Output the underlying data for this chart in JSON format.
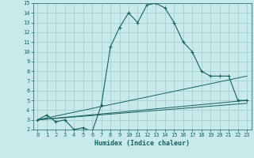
{
  "xlabel": "Humidex (Indice chaleur)",
  "background_color": "#c8eaea",
  "grid_color": "#a0c8c8",
  "line_color": "#1a6060",
  "xlim": [
    -0.5,
    23.5
  ],
  "ylim": [
    2,
    15
  ],
  "xticks": [
    0,
    1,
    2,
    3,
    4,
    5,
    6,
    7,
    8,
    9,
    10,
    11,
    12,
    13,
    14,
    15,
    16,
    17,
    18,
    19,
    20,
    21,
    22,
    23
  ],
  "yticks": [
    2,
    3,
    4,
    5,
    6,
    7,
    8,
    9,
    10,
    11,
    12,
    13,
    14,
    15
  ],
  "curve1_x": [
    0,
    1,
    2,
    3,
    4,
    5,
    6,
    7,
    8,
    9,
    10,
    11,
    12,
    13,
    14,
    15,
    16,
    17,
    18,
    19,
    20,
    21,
    22,
    23
  ],
  "curve1_y": [
    3,
    3.5,
    2.8,
    3,
    2,
    2.2,
    1.8,
    4.5,
    10.5,
    12.5,
    14,
    13,
    14.8,
    15,
    14.5,
    13,
    11,
    10,
    8,
    7.5,
    7.5,
    7.5,
    5,
    5
  ],
  "curve2_x": [
    0,
    23
  ],
  "curve2_y": [
    3,
    5
  ],
  "curve3_x": [
    0,
    23
  ],
  "curve3_y": [
    3,
    4.7
  ],
  "curve4_x": [
    0,
    23
  ],
  "curve4_y": [
    3,
    7.5
  ]
}
